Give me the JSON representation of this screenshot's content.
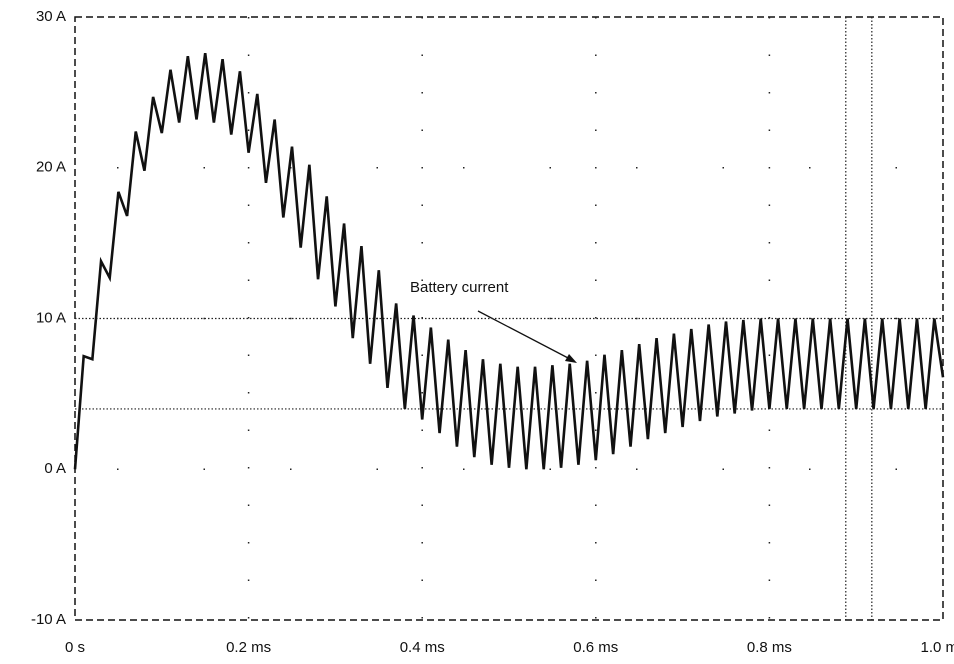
{
  "chart_data": {
    "type": "line",
    "annotation": "Battery current",
    "x": [
      0,
      0.01,
      0.02,
      0.03,
      0.04,
      0.05,
      0.06,
      0.07,
      0.08,
      0.09,
      0.1,
      0.11,
      0.12,
      0.13,
      0.14,
      0.15,
      0.16,
      0.17,
      0.18,
      0.19,
      0.2,
      0.21,
      0.22,
      0.23,
      0.24,
      0.25,
      0.26,
      0.27,
      0.28,
      0.29,
      0.3,
      0.31,
      0.32,
      0.33,
      0.34,
      0.35,
      0.36,
      0.37,
      0.38,
      0.39,
      0.4,
      0.41,
      0.42,
      0.43,
      0.44,
      0.45,
      0.46,
      0.47,
      0.48,
      0.49,
      0.5,
      0.51,
      0.52,
      0.53,
      0.54,
      0.55,
      0.56,
      0.57,
      0.58,
      0.59,
      0.6,
      0.61,
      0.62,
      0.63,
      0.64,
      0.65,
      0.66,
      0.67,
      0.68,
      0.69,
      0.7,
      0.71,
      0.72,
      0.73,
      0.74,
      0.75,
      0.76,
      0.77,
      0.78,
      0.79,
      0.8,
      0.81,
      0.82,
      0.83,
      0.84,
      0.85,
      0.86,
      0.87,
      0.88,
      0.89,
      0.9,
      0.91,
      0.92,
      0.93,
      0.94,
      0.95,
      0.96,
      0.97,
      0.98,
      0.99,
      1.0
    ],
    "series": [
      {
        "color": "#111111",
        "values": [
          0,
          7.5,
          7.3,
          13.8,
          12.7,
          18.4,
          16.8,
          22.4,
          19.8,
          24.7,
          22.3,
          26.5,
          23.0,
          27.4,
          23.2,
          27.6,
          23.0,
          27.2,
          22.2,
          26.4,
          21.0,
          24.9,
          19.0,
          23.2,
          16.7,
          21.4,
          14.7,
          20.2,
          12.6,
          18.1,
          10.8,
          16.3,
          8.7,
          14.8,
          7.0,
          13.2,
          5.4,
          11.0,
          4.0,
          10.2,
          3.3,
          9.4,
          2.4,
          8.6,
          1.5,
          7.9,
          0.8,
          7.3,
          0.3,
          7.0,
          0.1,
          6.8,
          0.0,
          6.8,
          0.0,
          6.9,
          0.1,
          7.0,
          0.3,
          7.2,
          0.6,
          7.6,
          1.0,
          7.9,
          1.5,
          8.3,
          2.0,
          8.7,
          2.4,
          9.0,
          2.8,
          9.3,
          3.2,
          9.6,
          3.5,
          9.8,
          3.7,
          9.9,
          3.9,
          10,
          4,
          10,
          4,
          10,
          4,
          10,
          4,
          10,
          4,
          10,
          4,
          10,
          4,
          10,
          4,
          10,
          4,
          10,
          4,
          10,
          6.1
        ]
      }
    ],
    "xlim": [
      0,
      1.0
    ],
    "xticks": [
      {
        "value": 0,
        "label": "0 s"
      },
      {
        "value": 0.2,
        "label": "0.2 ms"
      },
      {
        "value": 0.4,
        "label": "0.4 ms"
      },
      {
        "value": 0.6,
        "label": "0.6 ms"
      },
      {
        "value": 0.8,
        "label": "0.8 ms"
      },
      {
        "value": 1.0,
        "label": "1.0 ms"
      }
    ],
    "ylim": [
      -10,
      30
    ],
    "yticks": [
      {
        "value": -10,
        "label": "-10 A"
      },
      {
        "value": 0,
        "label": "0 A"
      },
      {
        "value": 10,
        "label": "10 A"
      },
      {
        "value": 20,
        "label": "20 A"
      },
      {
        "value": 30,
        "label": "30 A"
      }
    ],
    "hlines": [
      10,
      4
    ],
    "vlines": [
      0.888,
      0.918
    ],
    "grid": true
  }
}
